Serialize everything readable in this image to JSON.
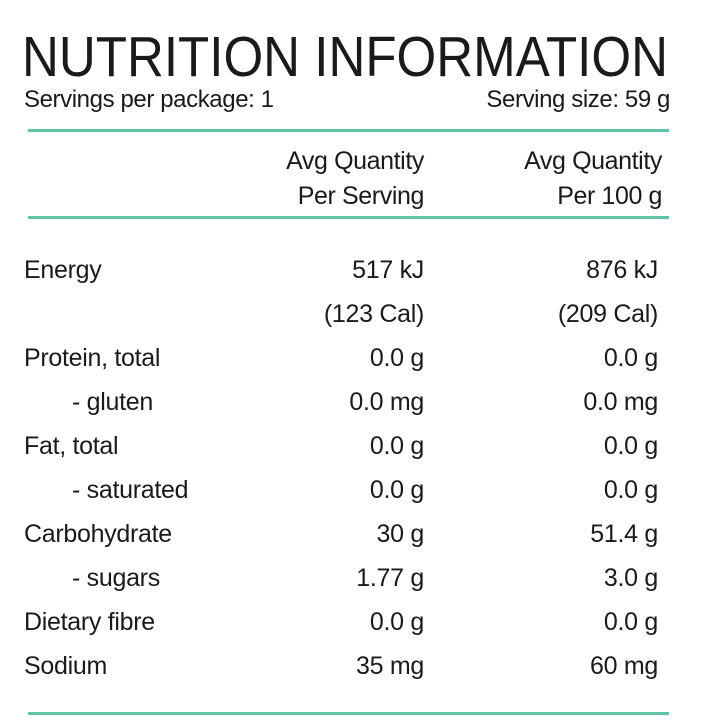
{
  "title": "NUTRITION INFORMATION",
  "servings_per_package": "Servings per package: 1",
  "serving_size": "Serving size: 59 g",
  "columns": {
    "per_serving": [
      "Avg Quantity",
      "Per Serving"
    ],
    "per_100g": [
      "Avg Quantity",
      "Per 100 g"
    ]
  },
  "rows": [
    {
      "label": "Energy",
      "serving": "517 kJ",
      "per100": "876 kJ"
    },
    {
      "label": "",
      "serving": "(123 Cal)",
      "per100": "(209 Cal)"
    },
    {
      "label": "Protein, total",
      "serving": "0.0 g",
      "per100": "0.0 g"
    },
    {
      "label": "- gluten",
      "serving": "0.0 mg",
      "per100": "0.0 mg"
    },
    {
      "label": "Fat, total",
      "serving": "0.0 g",
      "per100": "0.0 g"
    },
    {
      "label": "- saturated",
      "serving": "0.0 g",
      "per100": "0.0 g"
    },
    {
      "label": "Carbohydrate",
      "serving": "30 g",
      "per100": "51.4 g"
    },
    {
      "label": "- sugars",
      "serving": "1.77 g",
      "per100": "3.0 g"
    },
    {
      "label": "Dietary fibre",
      "serving": "0.0 g",
      "per100": "0.0 g"
    },
    {
      "label": "Sodium",
      "serving": "35 mg",
      "per100": "60 mg"
    }
  ],
  "colors": {
    "rule": "#5fc3a5",
    "text": "#1a1a1a"
  }
}
